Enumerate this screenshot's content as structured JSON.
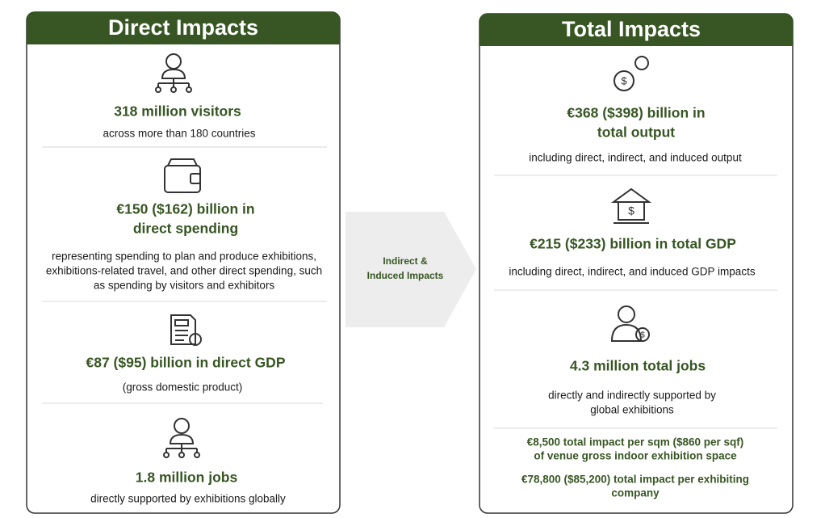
{
  "direct": {
    "title": "Direct Impacts",
    "items": [
      {
        "heading": [
          "318 million visitors"
        ],
        "text": [
          "across more than 180 countries"
        ]
      },
      {
        "heading": [
          "€150 ($162) billion in",
          "direct spending"
        ],
        "text": [
          "representing spending to plan and produce exhibitions,",
          "exhibitions-related travel, and other direct spending, such",
          "as spending by visitors and exhibitors"
        ]
      },
      {
        "heading": [
          "€87 ($95) billion in direct GDP"
        ],
        "text": [
          "(gross domestic product)"
        ]
      },
      {
        "heading": [
          "1.8 million jobs"
        ],
        "text": [
          "directly supported by exhibitions  globally"
        ]
      }
    ]
  },
  "arrow": [
    "Indirect &",
    "Induced Impacts"
  ],
  "total": {
    "title": "Total Impacts",
    "items": [
      {
        "heading": [
          "€368 ($398)  billion in",
          "total output"
        ],
        "text": [
          "including direct, indirect, and induced output"
        ]
      },
      {
        "heading": [
          "€215 ($233) billion in total GDP"
        ],
        "text": [
          "including direct, indirect, and induced GDP impacts"
        ]
      },
      {
        "heading": [
          "4.3 million total jobs"
        ],
        "text": [
          "directly and indirectly supported by",
          "global exhibitions"
        ]
      }
    ],
    "notes": [
      [
        "€8,500 total impact per sqm ($860 per sqf)",
        "of venue gross indoor exhibition space"
      ],
      [
        "€78,800 ($85,200) total impact per exhibiting",
        "company"
      ]
    ]
  }
}
